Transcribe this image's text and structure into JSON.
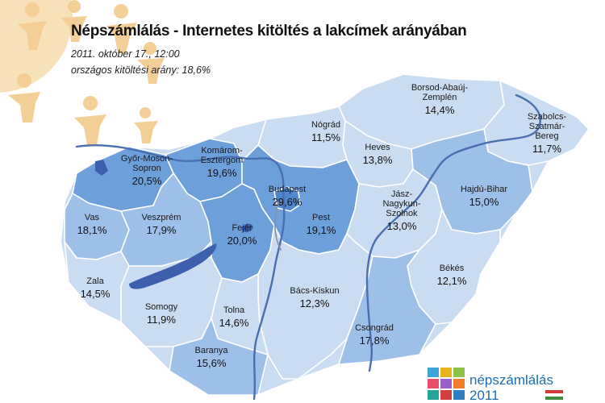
{
  "title": "Népszámlálás - Internetes kitöltés a lakcímek arányában",
  "subtitle_date": "2011. október 17., 12:00",
  "subtitle_rate": "országos kitöltési arány: 18,6%",
  "logo": {
    "name": "népszámlálás",
    "year": "2011"
  },
  "colors": {
    "light": "#c9dcf1",
    "mid": "#9dc0e8",
    "dark": "#6d9fdb",
    "capital": "#4f86cc",
    "lake": "#3d5fae",
    "river": "#4a6fb0",
    "border": "#ffffff",
    "logo_blue": "#1d6fb5"
  },
  "counties": [
    {
      "id": "gyor",
      "name_lines": [
        "Győr-Moson-",
        "Sopron"
      ],
      "value": "20,5%",
      "shade": "dark"
    },
    {
      "id": "komarom",
      "name_lines": [
        "Komárom-",
        "Esztergom"
      ],
      "value": "19,6%",
      "shade": "dark"
    },
    {
      "id": "nograd",
      "name_lines": [
        "Nógrád"
      ],
      "value": "11,5%",
      "shade": "light"
    },
    {
      "id": "borsod",
      "name_lines": [
        "Borsod-Abaúj-",
        "Zemplén"
      ],
      "value": "14,4%",
      "shade": "light"
    },
    {
      "id": "szabolcs",
      "name_lines": [
        "Szabolcs-",
        "Szatmár-",
        "Bereg"
      ],
      "value": "11,7%",
      "shade": "light"
    },
    {
      "id": "heves",
      "name_lines": [
        "Heves"
      ],
      "value": "13,8%",
      "shade": "light"
    },
    {
      "id": "vas",
      "name_lines": [
        "Vas"
      ],
      "value": "18,1%",
      "shade": "mid"
    },
    {
      "id": "veszprem",
      "name_lines": [
        "Veszprém"
      ],
      "value": "17,9%",
      "shade": "mid"
    },
    {
      "id": "budapest",
      "name_lines": [
        "Budapest"
      ],
      "value": "29,6%",
      "shade": "capital"
    },
    {
      "id": "pest",
      "name_lines": [
        "Pest"
      ],
      "value": "19,1%",
      "shade": "dark"
    },
    {
      "id": "jasz",
      "name_lines": [
        "Jász-",
        "Nagykun-",
        "Szolnok"
      ],
      "value": "13,0%",
      "shade": "light"
    },
    {
      "id": "hajdu",
      "name_lines": [
        "Hajdú-Bihar"
      ],
      "value": "15,0%",
      "shade": "mid"
    },
    {
      "id": "fejer",
      "name_lines": [
        "Fejér"
      ],
      "value": "20,0%",
      "shade": "dark"
    },
    {
      "id": "zala",
      "name_lines": [
        "Zala"
      ],
      "value": "14,5%",
      "shade": "light"
    },
    {
      "id": "bekes",
      "name_lines": [
        "Békés"
      ],
      "value": "12,1%",
      "shade": "light"
    },
    {
      "id": "somogy",
      "name_lines": [
        "Somogy"
      ],
      "value": "11,9%",
      "shade": "light"
    },
    {
      "id": "bacs",
      "name_lines": [
        "Bács-Kiskun"
      ],
      "value": "12,3%",
      "shade": "light"
    },
    {
      "id": "tolna",
      "name_lines": [
        "Tolna"
      ],
      "value": "14,6%",
      "shade": "light"
    },
    {
      "id": "csongrad",
      "name_lines": [
        "Csongrád"
      ],
      "value": "17,8%",
      "shade": "mid"
    },
    {
      "id": "baranya",
      "name_lines": [
        "Baranya"
      ],
      "value": "15,6%",
      "shade": "mid"
    }
  ]
}
